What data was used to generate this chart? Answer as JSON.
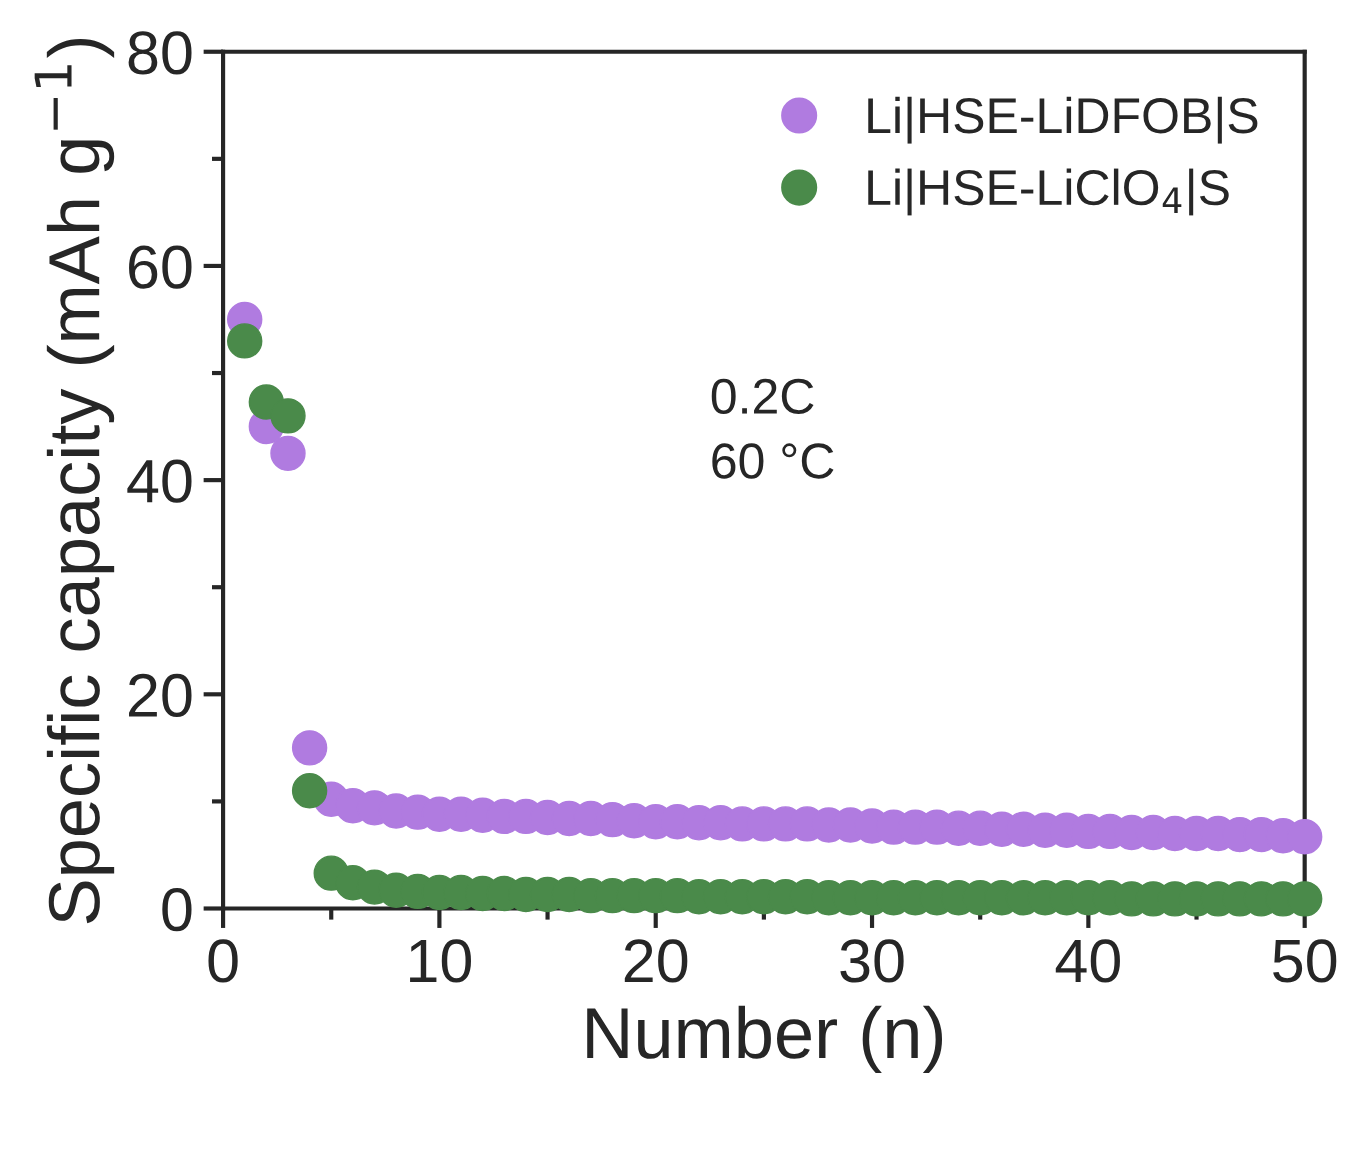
{
  "chart_data": {
    "type": "scatter",
    "xlabel": "Number (n)",
    "ylabel": "Specific capacity (mAh g$^{−1}$)",
    "x": [
      1,
      2,
      3,
      4,
      5,
      6,
      7,
      8,
      9,
      10,
      11,
      12,
      13,
      14,
      15,
      16,
      17,
      18,
      19,
      20,
      21,
      22,
      23,
      24,
      25,
      26,
      27,
      28,
      29,
      30,
      31,
      32,
      33,
      34,
      35,
      36,
      37,
      38,
      39,
      40,
      41,
      42,
      43,
      44,
      45,
      46,
      47,
      48,
      49,
      50
    ],
    "series": [
      {
        "name": "Li|HSE-LiDFOB|S",
        "color": "#b07be0",
        "values": [
          55,
          45,
          42.5,
          15,
          10.2,
          9.6,
          9.4,
          9.1,
          9.0,
          8.8,
          8.8,
          8.7,
          8.6,
          8.6,
          8.5,
          8.4,
          8.4,
          8.3,
          8.2,
          8.1,
          8.1,
          8.0,
          8.0,
          7.9,
          7.9,
          7.9,
          7.9,
          7.8,
          7.8,
          7.7,
          7.6,
          7.6,
          7.6,
          7.5,
          7.5,
          7.4,
          7.4,
          7.3,
          7.3,
          7.2,
          7.2,
          7.1,
          7.1,
          7.0,
          7.0,
          7.0,
          6.9,
          6.9,
          6.8,
          6.7
        ]
      },
      {
        "name": "Li|HSE-LiClO$_{4}$|S",
        "color": "#4a8a4a",
        "values": [
          53,
          47.3,
          46,
          11,
          3.3,
          2.4,
          2.0,
          1.7,
          1.6,
          1.5,
          1.5,
          1.4,
          1.4,
          1.3,
          1.3,
          1.3,
          1.2,
          1.2,
          1.2,
          1.2,
          1.2,
          1.1,
          1.1,
          1.1,
          1.1,
          1.1,
          1.1,
          1.0,
          1.0,
          1.0,
          1.0,
          1.0,
          1.0,
          1.0,
          1.0,
          1.0,
          1.0,
          1.0,
          1.0,
          1.0,
          1.0,
          0.9,
          0.9,
          0.9,
          0.9,
          0.9,
          0.9,
          0.9,
          0.9,
          0.9
        ]
      }
    ],
    "xlim": [
      0,
      50
    ],
    "xticks": [
      0,
      10,
      20,
      30,
      40,
      50
    ],
    "ylim": [
      0,
      80
    ],
    "yticks": [
      0,
      20,
      40,
      60,
      80
    ],
    "annotations": [
      "0.2C",
      "60 °C"
    ],
    "marker": "circle",
    "grid": false,
    "legend": "top right"
  }
}
